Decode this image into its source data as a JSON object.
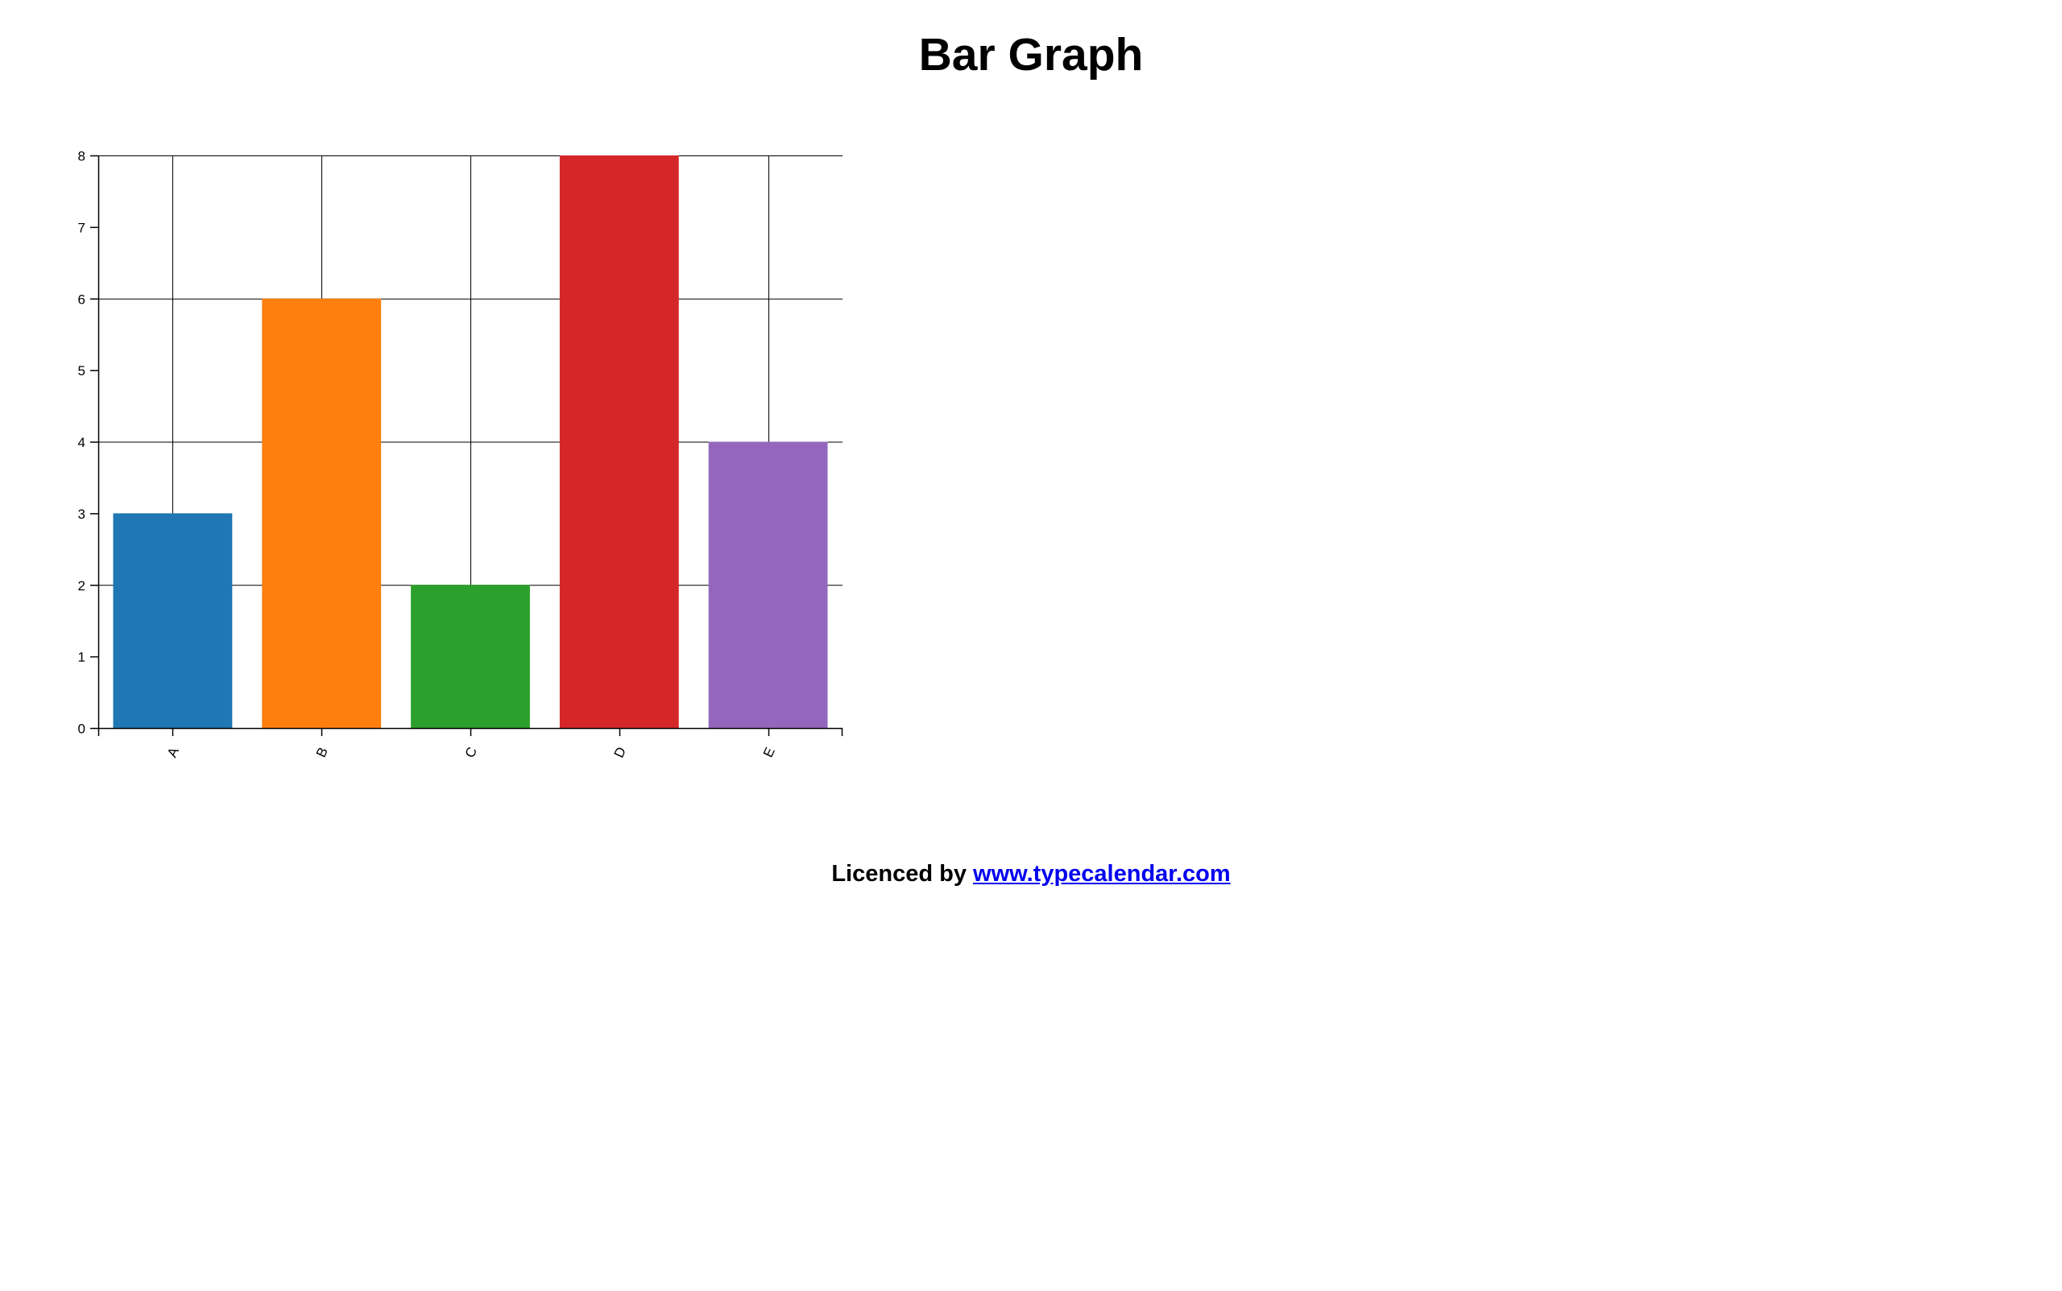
{
  "page": {
    "title": "Bar Graph"
  },
  "footer": {
    "prefix": "Licenced by",
    "link_text": "www.typecalendar.com"
  },
  "chart_data": {
    "type": "bar",
    "categories": [
      "A",
      "B",
      "C",
      "D",
      "E"
    ],
    "values": [
      3,
      6,
      2,
      8,
      4
    ],
    "colors": [
      "#1f77b4",
      "#ff7f0e",
      "#2ca02c",
      "#d62728",
      "#9467bd"
    ],
    "ylim": [
      0,
      8
    ],
    "yticks": [
      0,
      1,
      2,
      3,
      4,
      5,
      6,
      7,
      8
    ],
    "grid": {
      "y_values": [
        2,
        4,
        6,
        8
      ],
      "x_at_categories": true
    },
    "xlabel": "",
    "ylabel": ""
  }
}
